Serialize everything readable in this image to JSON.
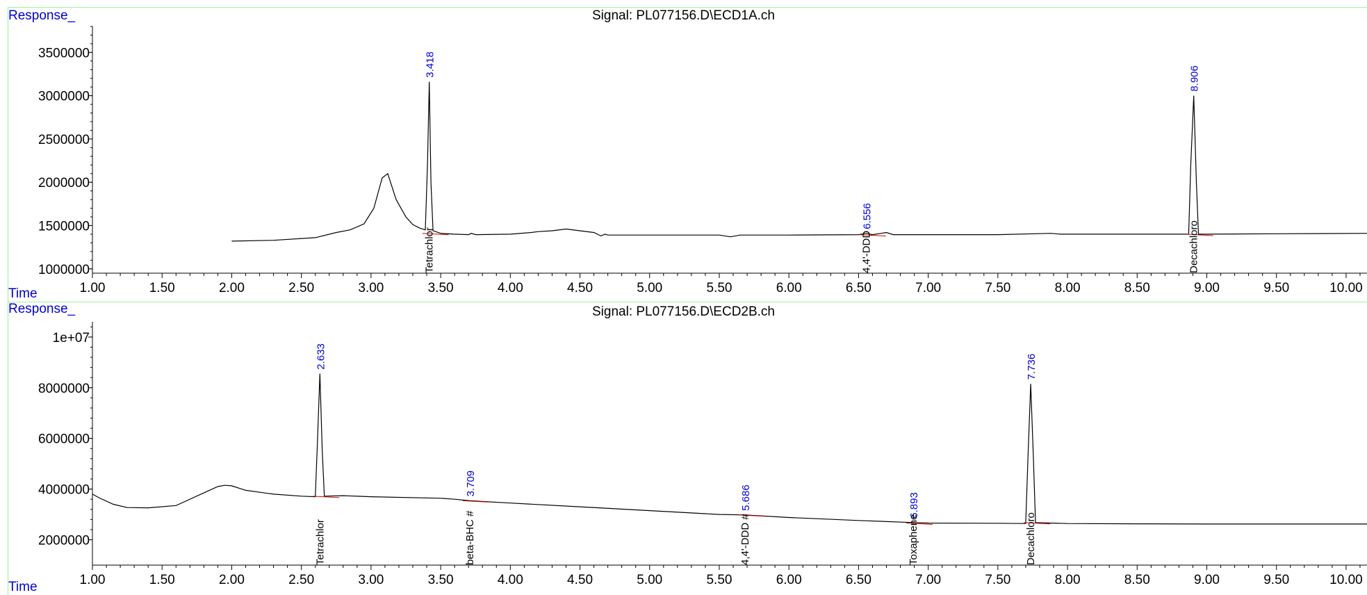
{
  "chart_data": [
    {
      "type": "line",
      "title": "Signal: PL077156.D\\ECD1A.ch",
      "ylabel": "Response_",
      "xlabel": "Time",
      "xlim": [
        1.0,
        10.15
      ],
      "ylim": [
        950000,
        3800000
      ],
      "x_ticks": [
        "1.00",
        "1.50",
        "2.00",
        "2.50",
        "3.00",
        "3.50",
        "4.00",
        "4.50",
        "5.00",
        "5.50",
        "6.00",
        "6.50",
        "7.00",
        "7.50",
        "8.00",
        "8.50",
        "9.00",
        "9.50",
        "10.00"
      ],
      "y_ticks": [
        "1000000",
        "1500000",
        "2000000",
        "2500000",
        "3000000",
        "3500000"
      ],
      "series": [
        {
          "x": [
            2.0,
            2.3,
            2.6,
            2.75,
            2.85,
            2.95,
            3.02,
            3.08,
            3.12,
            3.18,
            3.25,
            3.3,
            3.35,
            3.39,
            3.405,
            3.418,
            3.43,
            3.445,
            3.5,
            3.6,
            3.7,
            3.72,
            3.75,
            4.0,
            4.15,
            4.2,
            4.3,
            4.4,
            4.5,
            4.6,
            4.65,
            4.68,
            4.7,
            5.0,
            5.5,
            5.58,
            5.65,
            6.0,
            6.5,
            6.556,
            6.6,
            6.7,
            6.75,
            7.0,
            7.5,
            7.88,
            7.95,
            8.0,
            8.5,
            8.87,
            8.885,
            8.906,
            8.925,
            8.94,
            9.0,
            9.5,
            10.15
          ],
          "y": [
            1320000,
            1330000,
            1360000,
            1420000,
            1450000,
            1520000,
            1700000,
            2050000,
            2100000,
            1800000,
            1600000,
            1510000,
            1470000,
            1450000,
            2200000,
            3160000,
            2000000,
            1440000,
            1410000,
            1400000,
            1395000,
            1410000,
            1395000,
            1400000,
            1420000,
            1430000,
            1440000,
            1460000,
            1440000,
            1420000,
            1380000,
            1400000,
            1390000,
            1390000,
            1390000,
            1370000,
            1390000,
            1390000,
            1395000,
            1410000,
            1395000,
            1420000,
            1395000,
            1395000,
            1395000,
            1410000,
            1400000,
            1400000,
            1400000,
            1400000,
            2200000,
            3000000,
            2000000,
            1400000,
            1400000,
            1405000,
            1410000
          ]
        }
      ],
      "annotations": [
        {
          "x": 3.418,
          "y": 3160000,
          "rt": "3.418",
          "compound": "Tetrachlor"
        },
        {
          "x": 6.556,
          "y": 1410000,
          "rt": "6.556",
          "compound": "4,4'-DDD"
        },
        {
          "x": 8.906,
          "y": 3000000,
          "rt": "8.906",
          "compound": "Decachloro"
        }
      ],
      "grid": false,
      "colors": {
        "trace": "#000000",
        "retention_label": "#0000cc",
        "compound_label": "#000000",
        "baseline": "#cc0000"
      }
    },
    {
      "type": "line",
      "title": "Signal: PL077156.D\\ECD2B.ch",
      "ylabel": "Response_",
      "xlabel": "Time",
      "xlim": [
        1.0,
        10.15
      ],
      "ylim": [
        1000000,
        10600000
      ],
      "x_ticks": [
        "1.00",
        "1.50",
        "2.00",
        "2.50",
        "3.00",
        "3.50",
        "4.00",
        "4.50",
        "5.00",
        "5.50",
        "6.00",
        "6.50",
        "7.00",
        "7.50",
        "8.00",
        "8.50",
        "9.00",
        "9.50",
        "10.00"
      ],
      "y_ticks": [
        "2000000",
        "4000000",
        "6000000",
        "8000000",
        "1e+07"
      ],
      "series": [
        {
          "x": [
            1.0,
            1.05,
            1.15,
            1.25,
            1.4,
            1.6,
            1.8,
            1.9,
            1.95,
            2.0,
            2.1,
            2.3,
            2.5,
            2.6,
            2.615,
            2.633,
            2.65,
            2.665,
            2.8,
            3.0,
            3.5,
            3.6,
            3.709,
            4.0,
            4.5,
            5.0,
            5.5,
            5.686,
            6.0,
            6.5,
            6.893,
            7.0,
            7.5,
            7.7,
            7.718,
            7.736,
            7.755,
            7.77,
            8.0,
            8.5,
            9.0,
            9.5,
            10.15
          ],
          "y": [
            3800000,
            3650000,
            3400000,
            3270000,
            3260000,
            3350000,
            3850000,
            4100000,
            4150000,
            4130000,
            3950000,
            3800000,
            3720000,
            3700000,
            5800000,
            8550000,
            5500000,
            3720000,
            3740000,
            3700000,
            3640000,
            3600000,
            3540000,
            3450000,
            3300000,
            3150000,
            3000000,
            2980000,
            2880000,
            2760000,
            2680000,
            2660000,
            2650000,
            2640000,
            5500000,
            8150000,
            5200000,
            2680000,
            2640000,
            2630000,
            2620000,
            2620000,
            2620000
          ]
        }
      ],
      "annotations": [
        {
          "x": 2.633,
          "y": 8550000,
          "rt": "2.633",
          "compound": "Tetrachlor"
        },
        {
          "x": 3.709,
          "y": 3540000,
          "rt": "3.709",
          "compound": "beta-BHC #"
        },
        {
          "x": 5.686,
          "y": 2980000,
          "rt": "5.686",
          "compound": "4,4'-DDD #"
        },
        {
          "x": 6.893,
          "y": 2680000,
          "rt": "6.893",
          "compound": "Toxaphene"
        },
        {
          "x": 7.736,
          "y": 8150000,
          "rt": "7.736",
          "compound": "Decachloro"
        }
      ],
      "grid": false,
      "colors": {
        "trace": "#000000",
        "retention_label": "#0000cc",
        "compound_label": "#000000",
        "baseline": "#cc0000"
      }
    }
  ],
  "colors": {
    "axis_label": "#0000cc",
    "frame": "#90ee90",
    "axis": "#000000"
  }
}
